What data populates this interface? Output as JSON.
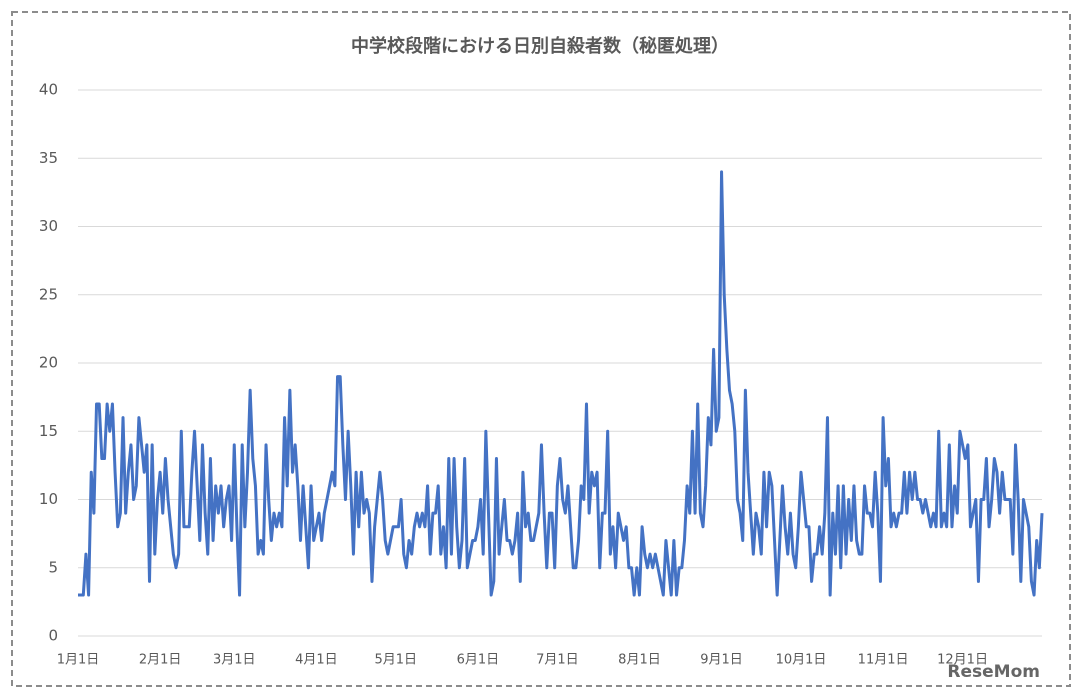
{
  "chart_data": {
    "type": "line",
    "title": "中学校段階における日別自殺者数（秘匿処理）",
    "watermark": "ReseMom",
    "xlim": [
      0,
      364
    ],
    "xticks": [
      {
        "value": 0,
        "label": "1月1日"
      },
      {
        "value": 31,
        "label": "2月1日"
      },
      {
        "value": 59,
        "label": "3月1日"
      },
      {
        "value": 90,
        "label": "4月1日"
      },
      {
        "value": 120,
        "label": "5月1日"
      },
      {
        "value": 151,
        "label": "6月1日"
      },
      {
        "value": 181,
        "label": "7月1日"
      },
      {
        "value": 212,
        "label": "8月1日"
      },
      {
        "value": 243,
        "label": "9月1日"
      },
      {
        "value": 273,
        "label": "10月1日"
      },
      {
        "value": 304,
        "label": "11月1日"
      },
      {
        "value": 334,
        "label": "12月1日"
      }
    ],
    "ylim": [
      0,
      40
    ],
    "yticks": [
      0,
      5,
      10,
      15,
      20,
      25,
      30,
      35,
      40
    ],
    "grid": true,
    "color": "#4472c4",
    "values": [
      3,
      3,
      3,
      6,
      3,
      12,
      9,
      17,
      17,
      13,
      13,
      17,
      15,
      17,
      12,
      8,
      9,
      16,
      9,
      12,
      14,
      10,
      11,
      16,
      14,
      12,
      14,
      4,
      14,
      6,
      10,
      12,
      9,
      13,
      10,
      8,
      6,
      5,
      6,
      15,
      8,
      8,
      8,
      12,
      15,
      11,
      7,
      14,
      9,
      6,
      13,
      7,
      11,
      9,
      11,
      8,
      10,
      11,
      7,
      14,
      8,
      3,
      14,
      8,
      12,
      18,
      13,
      11,
      6,
      7,
      6,
      14,
      10,
      7,
      9,
      8,
      9,
      8,
      16,
      11,
      18,
      12,
      14,
      11,
      7,
      11,
      8,
      5,
      11,
      7,
      8,
      9,
      7,
      9,
      10,
      11,
      12,
      11,
      19,
      19,
      14,
      10,
      15,
      11,
      6,
      12,
      8,
      12,
      9,
      10,
      9,
      4,
      8,
      10,
      12,
      10,
      7,
      6,
      7,
      8,
      8,
      8,
      10,
      6,
      5,
      7,
      6,
      8,
      9,
      8,
      9,
      8,
      11,
      6,
      9,
      9,
      11,
      6,
      8,
      5,
      13,
      6,
      13,
      8,
      5,
      7,
      13,
      5,
      6,
      7,
      7,
      8,
      10,
      6,
      15,
      9,
      3,
      4,
      13,
      6,
      8,
      10,
      7,
      7,
      6,
      7,
      9,
      4,
      12,
      8,
      9,
      7,
      7,
      8,
      9,
      14,
      9,
      5,
      9,
      9,
      5,
      11,
      13,
      10,
      9,
      11,
      8,
      5,
      5,
      7,
      11,
      10,
      17,
      9,
      12,
      11,
      12,
      5,
      9,
      9,
      15,
      6,
      8,
      5,
      9,
      8,
      7,
      8,
      5,
      5,
      3,
      5,
      3,
      8,
      6,
      5,
      6,
      5,
      6,
      5,
      4,
      3,
      7,
      5,
      3,
      7,
      3,
      5,
      5,
      7,
      11,
      9,
      15,
      9,
      17,
      9,
      8,
      11,
      16,
      14,
      21,
      15,
      16,
      34,
      25,
      21,
      18,
      17,
      15,
      10,
      9,
      7,
      18,
      12,
      9,
      6,
      9,
      8,
      6,
      12,
      8,
      12,
      11,
      7,
      3,
      7,
      11,
      8,
      6,
      9,
      6,
      5,
      8,
      12,
      10,
      8,
      8,
      4,
      6,
      6,
      8,
      6,
      9,
      16,
      3,
      9,
      6,
      11,
      5,
      11,
      6,
      10,
      7,
      11,
      7,
      6,
      6,
      11,
      9,
      9,
      8,
      12,
      9,
      4,
      16,
      11,
      13,
      8,
      9,
      8,
      9,
      9,
      12,
      9,
      12,
      10,
      12,
      10,
      10,
      9,
      10,
      9,
      8,
      9,
      8,
      15,
      8,
      9,
      8,
      14,
      8,
      11,
      9,
      15,
      14,
      13,
      14,
      8,
      9,
      10,
      4,
      10,
      10,
      13,
      8,
      10,
      13,
      12,
      9,
      12,
      10,
      10,
      10,
      6,
      14,
      10,
      4,
      10,
      9,
      8,
      4,
      3,
      7,
      5,
      9
    ]
  }
}
